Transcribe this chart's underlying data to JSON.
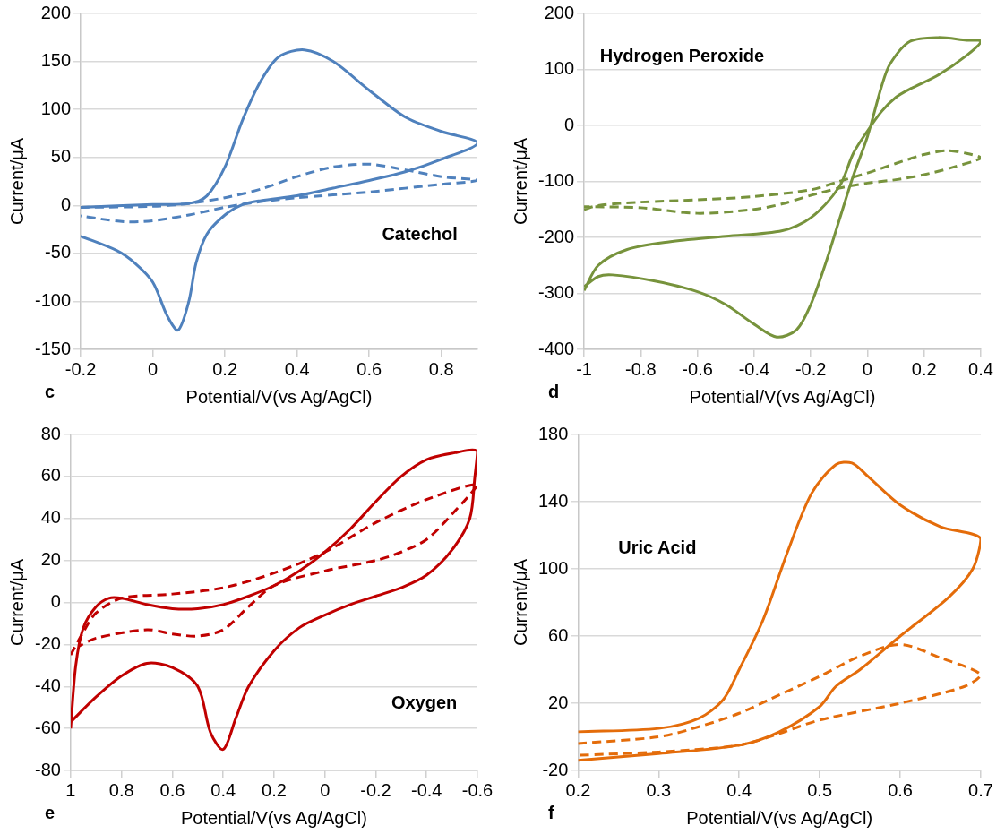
{
  "chart_data": [
    {
      "type": "line",
      "xlabel": "Potential/V(vs Ag/AgCl)",
      "ylabel": "Current/μA",
      "annotations": [
        "c",
        "Catechol"
      ],
      "xlim": [
        -0.2,
        0.9
      ],
      "xticks": [
        -0.2,
        0,
        0.2,
        0.4,
        0.6,
        0.8
      ],
      "ylim": [
        -150,
        200
      ],
      "yticks": [
        -150,
        -100,
        -50,
        0,
        50,
        100,
        150,
        200
      ],
      "grid": "y",
      "legend": false,
      "marker": "none",
      "series": [
        {
          "color": "#4f81bd",
          "line_style": "solid",
          "x": [
            -0.2,
            0,
            0.1,
            0.15,
            0.2,
            0.25,
            0.3,
            0.35,
            0.42,
            0.5,
            0.6,
            0.7,
            0.8,
            0.9,
            0.8,
            0.7,
            0.6,
            0.5,
            0.4,
            0.3,
            0.25,
            0.2,
            0.15,
            0.12,
            0.1,
            0.07,
            0.04,
            0,
            -0.05,
            -0.1,
            -0.2
          ],
          "values": [
            -2,
            1,
            2,
            10,
            40,
            90,
            130,
            155,
            162,
            150,
            120,
            92,
            77,
            65,
            48,
            35,
            26,
            18,
            10,
            5,
            1,
            -10,
            -30,
            -60,
            -100,
            -130,
            -115,
            -80,
            -60,
            -47,
            -32
          ]
        },
        {
          "color": "#4f81bd",
          "line_style": "dashed",
          "x": [
            -0.2,
            0,
            0.1,
            0.2,
            0.3,
            0.4,
            0.5,
            0.6,
            0.7,
            0.8,
            0.9,
            0.8,
            0.6,
            0.4,
            0.3,
            0.2,
            0.1,
            0,
            -0.08,
            -0.2
          ],
          "values": [
            -2,
            -1,
            2,
            8,
            17,
            30,
            40,
            43,
            37,
            30,
            26,
            22,
            14,
            8,
            4,
            -2,
            -10,
            -16,
            -17,
            -11
          ]
        }
      ]
    },
    {
      "type": "line",
      "xlabel": "Potential/V(vs Ag/AgCl)",
      "ylabel": "Current/μA",
      "annotations": [
        "d",
        "Hydrogen Peroxide"
      ],
      "xlim": [
        -1,
        0.4
      ],
      "xticks": [
        -1,
        -0.8,
        -0.6,
        -0.4,
        -0.2,
        0,
        0.2,
        0.4
      ],
      "ylim": [
        -400,
        200
      ],
      "yticks": [
        -400,
        -300,
        -200,
        -100,
        0,
        100,
        200
      ],
      "grid": "y",
      "legend": false,
      "marker": "none",
      "series": [
        {
          "color": "#77933c",
          "line_style": "solid",
          "x": [
            -1,
            -0.95,
            -0.85,
            -0.7,
            -0.5,
            -0.3,
            -0.2,
            -0.1,
            -0.05,
            0,
            0.05,
            0.1,
            0.15,
            0.25,
            0.35,
            0.4,
            0.35,
            0.25,
            0.15,
            0.08,
            0.05,
            0,
            -0.05,
            -0.1,
            -0.15,
            -0.2,
            -0.25,
            -0.32,
            -0.4,
            -0.5,
            -0.6,
            -0.75,
            -0.9,
            -0.95,
            -1
          ],
          "values": [
            -295,
            -250,
            -222,
            -208,
            -198,
            -188,
            -165,
            -110,
            -50,
            -10,
            25,
            50,
            65,
            90,
            125,
            150,
            152,
            157,
            150,
            110,
            70,
            -20,
            -90,
            -170,
            -250,
            -320,
            -365,
            -378,
            -355,
            -320,
            -297,
            -278,
            -267,
            -270,
            -288
          ]
        },
        {
          "color": "#77933c",
          "line_style": "dashed",
          "x": [
            -1,
            -0.95,
            -0.8,
            -0.6,
            -0.4,
            -0.2,
            -0.1,
            0,
            0.1,
            0.2,
            0.28,
            0.35,
            0.4,
            0.3,
            0.2,
            0.1,
            0,
            -0.1,
            -0.2,
            -0.3,
            -0.4,
            -0.6,
            -0.8,
            -1
          ],
          "values": [
            -150,
            -143,
            -137,
            -133,
            -127,
            -115,
            -100,
            -85,
            -68,
            -52,
            -45,
            -50,
            -58,
            -75,
            -88,
            -97,
            -103,
            -112,
            -125,
            -140,
            -150,
            -157,
            -147,
            -145
          ]
        }
      ]
    },
    {
      "type": "line",
      "xlabel": "Potential/V(vs Ag/AgCl)",
      "ylabel": "Current/μA",
      "annotations": [
        "e",
        "Oxygen"
      ],
      "xlim": [
        1,
        -0.6
      ],
      "xticks": [
        1,
        0.8,
        0.6,
        0.4,
        0.2,
        0,
        -0.2,
        -0.4,
        -0.6
      ],
      "ylim": [
        -80,
        80
      ],
      "yticks": [
        -80,
        -60,
        -40,
        -20,
        0,
        20,
        40,
        60,
        80
      ],
      "grid": "y",
      "legend": false,
      "marker": "none",
      "series": [
        {
          "color": "#c00000",
          "line_style": "solid",
          "x": [
            1,
            0.98,
            0.95,
            0.9,
            0.85,
            0.8,
            0.7,
            0.6,
            0.5,
            0.4,
            0.3,
            0.2,
            0.1,
            0,
            -0.1,
            -0.2,
            -0.3,
            -0.4,
            -0.5,
            -0.6,
            -0.59,
            -0.57,
            -0.5,
            -0.4,
            -0.3,
            -0.2,
            -0.1,
            0,
            0.1,
            0.2,
            0.3,
            0.35,
            0.4,
            0.45,
            0.5,
            0.6,
            0.7,
            0.8,
            0.9,
            1
          ],
          "values": [
            -60,
            -30,
            -12,
            -2,
            2,
            2,
            -1,
            -3,
            -3,
            -1,
            3,
            8,
            15,
            24,
            35,
            48,
            60,
            68,
            71,
            72,
            60,
            40,
            25,
            13,
            7,
            3,
            -1,
            -6,
            -12,
            -23,
            -40,
            -55,
            -70,
            -62,
            -40,
            -31,
            -29,
            -35,
            -45,
            -57
          ]
        },
        {
          "color": "#c00000",
          "line_style": "dashed",
          "x": [
            1,
            0.95,
            0.9,
            0.8,
            0.6,
            0.4,
            0.2,
            0,
            -0.2,
            -0.4,
            -0.6,
            -0.5,
            -0.4,
            -0.3,
            -0.2,
            0,
            0.2,
            0.3,
            0.4,
            0.5,
            0.6,
            0.7,
            0.9,
            0.97
          ],
          "values": [
            -25,
            -14,
            -5,
            2,
            4,
            7,
            14,
            24,
            38,
            49,
            56,
            42,
            30,
            24,
            20,
            15,
            8,
            -2,
            -13,
            -16,
            -15,
            -13,
            -17,
            -21
          ]
        }
      ]
    },
    {
      "type": "line",
      "xlabel": "Potential/V(vs Ag/AgCl)",
      "ylabel": "Current/μA",
      "annotations": [
        "f",
        "Uric Acid"
      ],
      "xlim": [
        0.2,
        0.7
      ],
      "xticks": [
        0.2,
        0.3,
        0.4,
        0.5,
        0.6,
        0.7
      ],
      "ylim": [
        -20,
        180
      ],
      "yticks": [
        -20,
        20,
        60,
        100,
        140,
        180
      ],
      "grid": "y",
      "legend": false,
      "marker": "none",
      "series": [
        {
          "color": "#e46c0a",
          "line_style": "solid",
          "x": [
            0.2,
            0.3,
            0.35,
            0.38,
            0.4,
            0.43,
            0.46,
            0.49,
            0.52,
            0.54,
            0.56,
            0.6,
            0.65,
            0.7,
            0.69,
            0.66,
            0.6,
            0.55,
            0.52,
            0.5,
            0.45,
            0.4,
            0.3,
            0.2
          ],
          "values": [
            3,
            5,
            11,
            22,
            40,
            70,
            110,
            145,
            162,
            163,
            155,
            138,
            125,
            118,
            100,
            83,
            60,
            40,
            30,
            18,
            3,
            -5,
            -10,
            -14
          ]
        },
        {
          "color": "#e46c0a",
          "line_style": "dashed",
          "x": [
            0.2,
            0.3,
            0.35,
            0.4,
            0.45,
            0.5,
            0.55,
            0.6,
            0.65,
            0.7,
            0.68,
            0.6,
            0.5,
            0.45,
            0.4,
            0.3,
            0.2
          ],
          "values": [
            -4,
            0,
            6,
            14,
            25,
            36,
            48,
            55,
            47,
            37,
            30,
            20,
            10,
            2,
            -5,
            -9,
            -11
          ]
        }
      ]
    }
  ]
}
